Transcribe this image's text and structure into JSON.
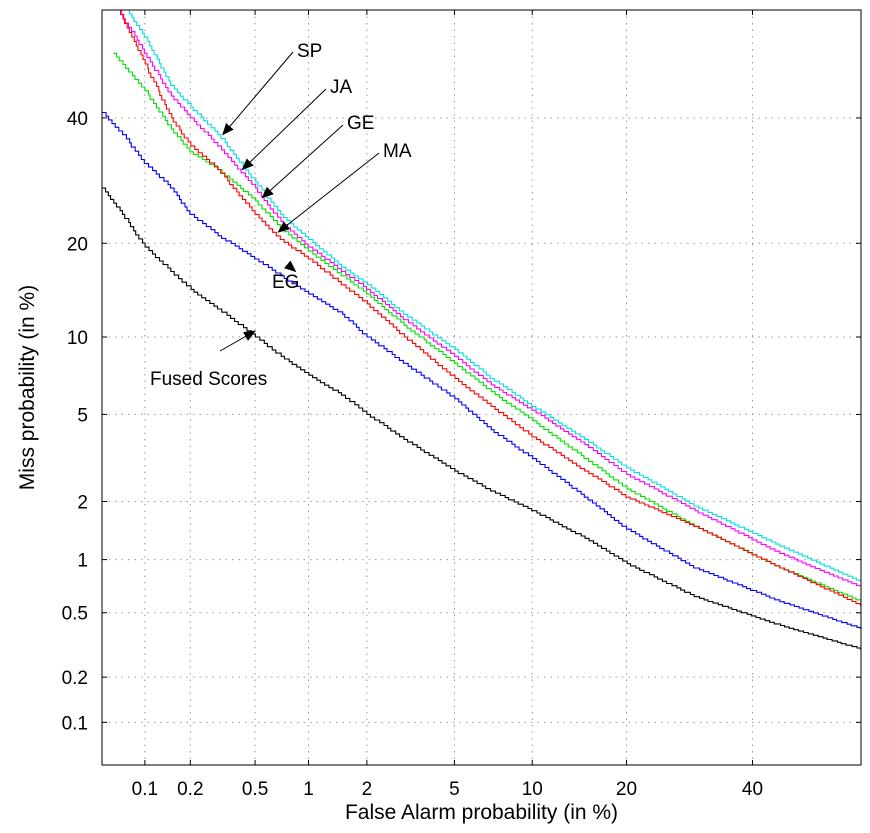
{
  "chart_data": {
    "type": "line",
    "subtype": "DET curve (normal-deviate axes)",
    "title": "",
    "xlabel": "False Alarm probability (in %)",
    "ylabel": "Miss probability (in %)",
    "xlim": [
      0.05,
      60
    ],
    "ylim": [
      0.05,
      60
    ],
    "xticks": [
      0.1,
      0.2,
      0.5,
      1,
      2,
      5,
      10,
      20,
      40
    ],
    "xtick_labels": [
      "0.1",
      "0.2",
      "0.5",
      "1",
      "2",
      "5",
      "10",
      "20",
      "40"
    ],
    "yticks": [
      0.1,
      0.2,
      0.5,
      1,
      2,
      5,
      10,
      20,
      40
    ],
    "ytick_labels": [
      "0.1",
      "0.2",
      "0.5",
      "1",
      "2",
      "5",
      "10",
      "20",
      "40"
    ],
    "grid": true,
    "series": [
      {
        "name": "SP",
        "color": "#00e0e0",
        "x": [
          0.075,
          0.1,
          0.15,
          0.2,
          0.3,
          0.5,
          0.7,
          1,
          1.5,
          2,
          3,
          5,
          7,
          10,
          15,
          20,
          30,
          45,
          60
        ],
        "y": [
          60,
          55,
          46,
          42,
          37,
          29,
          24,
          20.5,
          17,
          15,
          12,
          9.0,
          7.0,
          5.4,
          3.9,
          2.9,
          1.9,
          1.18,
          0.75
        ]
      },
      {
        "name": "JA",
        "color": "#ff00ff",
        "x": [
          0.065,
          0.1,
          0.15,
          0.2,
          0.3,
          0.5,
          0.7,
          1,
          1.5,
          2,
          3,
          5,
          7,
          10,
          15,
          20,
          30,
          45,
          60
        ],
        "y": [
          60,
          52,
          44,
          40,
          35,
          28,
          23,
          19.5,
          16.5,
          14.5,
          11.5,
          8.5,
          6.6,
          5.2,
          3.7,
          2.7,
          1.8,
          1.08,
          0.7
        ]
      },
      {
        "name": "GE",
        "color": "#00e000",
        "x": [
          0.06,
          0.1,
          0.15,
          0.2,
          0.3,
          0.5,
          0.7,
          1,
          1.5,
          2,
          3,
          5,
          7,
          10,
          15,
          20,
          30,
          45,
          60
        ],
        "y": [
          52,
          45,
          38,
          34,
          31,
          26,
          22,
          19,
          16,
          14,
          11,
          8.0,
          6.2,
          4.7,
          3.2,
          2.3,
          1.5,
          0.9,
          0.58
        ]
      },
      {
        "name": "MA",
        "color": "#ff0000",
        "x": [
          0.065,
          0.1,
          0.15,
          0.2,
          0.3,
          0.5,
          0.7,
          1,
          1.5,
          2,
          3,
          5,
          7,
          10,
          15,
          20,
          30,
          45,
          60
        ],
        "y": [
          60,
          50,
          40,
          35,
          31,
          24,
          20.5,
          18,
          15,
          13,
          10,
          7.0,
          5.4,
          4.0,
          2.8,
          2.1,
          1.5,
          0.9,
          0.55
        ]
      },
      {
        "name": "EG",
        "color": "#0000ff",
        "x": [
          0.05,
          0.07,
          0.1,
          0.15,
          0.2,
          0.3,
          0.5,
          0.7,
          1,
          1.5,
          2,
          3,
          5,
          7,
          10,
          15,
          20,
          30,
          45,
          60
        ],
        "y": [
          41,
          37,
          32,
          28,
          24,
          21,
          18,
          16,
          14,
          12,
          10,
          8.0,
          5.8,
          4.3,
          3.2,
          2.1,
          1.45,
          0.9,
          0.58,
          0.4
        ]
      },
      {
        "name": "Fused Scores",
        "color": "#000000",
        "x": [
          0.05,
          0.07,
          0.1,
          0.15,
          0.2,
          0.3,
          0.5,
          0.7,
          1,
          1.5,
          2,
          3,
          5,
          7,
          10,
          15,
          20,
          30,
          45,
          60
        ],
        "y": [
          28,
          24,
          19.5,
          16.5,
          14.5,
          12.5,
          10,
          8.5,
          7.2,
          6.0,
          5.0,
          3.9,
          2.8,
          2.25,
          1.8,
          1.3,
          0.95,
          0.62,
          0.42,
          0.3
        ]
      }
    ],
    "annotations": [
      {
        "text": "SP",
        "series": "SP",
        "arrow_to": [
          0.32,
          37
        ]
      },
      {
        "text": "JA",
        "series": "JA",
        "arrow_to": [
          0.42,
          31
        ]
      },
      {
        "text": "GE",
        "series": "GE",
        "arrow_to": [
          0.55,
          26.5
        ]
      },
      {
        "text": "MA",
        "series": "MA",
        "arrow_to": [
          0.68,
          21.5
        ]
      },
      {
        "text": "EG",
        "series": "EG",
        "arrow_to": [
          0.85,
          16.5
        ]
      },
      {
        "text": "Fused Scores",
        "series": "Fused Scores",
        "arrow_to": [
          0.5,
          10.5
        ]
      }
    ]
  }
}
